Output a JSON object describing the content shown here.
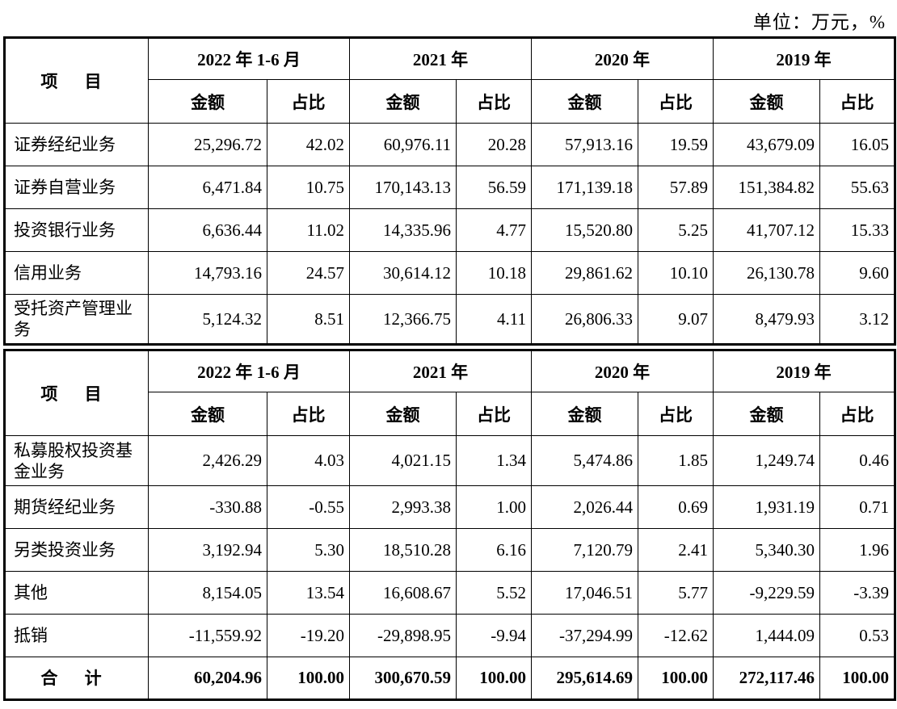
{
  "unit_label": "单位：万元，%",
  "header": {
    "item": "项 目",
    "periods": [
      "2022 年 1-6 月",
      "2021 年",
      "2020 年",
      "2019 年"
    ],
    "amount": "金额",
    "ratio": "占比"
  },
  "table1": {
    "rows": [
      {
        "item": "证券经纪业务",
        "values": [
          "25,296.72",
          "42.02",
          "60,976.11",
          "20.28",
          "57,913.16",
          "19.59",
          "43,679.09",
          "16.05"
        ]
      },
      {
        "item": "证券自营业务",
        "values": [
          "6,471.84",
          "10.75",
          "170,143.13",
          "56.59",
          "171,139.18",
          "57.89",
          "151,384.82",
          "55.63"
        ]
      },
      {
        "item": "投资银行业务",
        "values": [
          "6,636.44",
          "11.02",
          "14,335.96",
          "4.77",
          "15,520.80",
          "5.25",
          "41,707.12",
          "15.33"
        ]
      },
      {
        "item": "信用业务",
        "values": [
          "14,793.16",
          "24.57",
          "30,614.12",
          "10.18",
          "29,861.62",
          "10.10",
          "26,130.78",
          "9.60"
        ]
      },
      {
        "item": "受托资产管理业务",
        "values": [
          "5,124.32",
          "8.51",
          "12,366.75",
          "4.11",
          "26,806.33",
          "9.07",
          "8,479.93",
          "3.12"
        ]
      }
    ]
  },
  "table2": {
    "rows": [
      {
        "item": "私募股权投资基金业务",
        "values": [
          "2,426.29",
          "4.03",
          "4,021.15",
          "1.34",
          "5,474.86",
          "1.85",
          "1,249.74",
          "0.46"
        ]
      },
      {
        "item": "期货经纪业务",
        "values": [
          "-330.88",
          "-0.55",
          "2,993.38",
          "1.00",
          "2,026.44",
          "0.69",
          "1,931.19",
          "0.71"
        ]
      },
      {
        "item": "另类投资业务",
        "values": [
          "3,192.94",
          "5.30",
          "18,510.28",
          "6.16",
          "7,120.79",
          "2.41",
          "5,340.30",
          "1.96"
        ]
      },
      {
        "item": "其他",
        "values": [
          "8,154.05",
          "13.54",
          "16,608.67",
          "5.52",
          "17,046.51",
          "5.77",
          "-9,229.59",
          "-3.39"
        ]
      },
      {
        "item": "抵销",
        "values": [
          "-11,559.92",
          "-19.20",
          "-29,898.95",
          "-9.94",
          "-37,294.99",
          "-12.62",
          "1,444.09",
          "0.53"
        ]
      }
    ],
    "total": {
      "item": "合 计",
      "values": [
        "60,204.96",
        "100.00",
        "300,670.59",
        "100.00",
        "295,614.69",
        "100.00",
        "272,117.46",
        "100.00"
      ]
    }
  }
}
